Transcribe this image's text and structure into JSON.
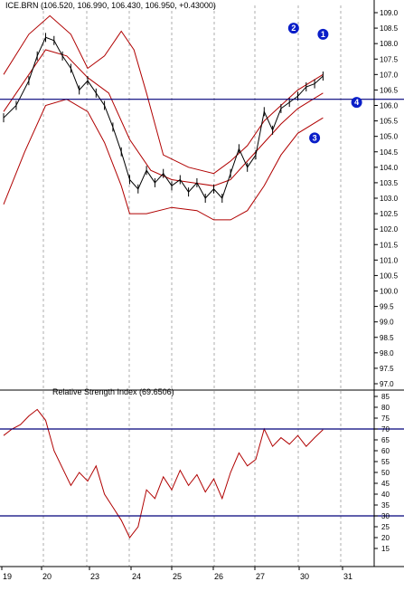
{
  "chart_data": [
    {
      "type": "candlestick",
      "title": "ICE.BRN (106.520, 106.990, 106.430, 106.950, +0.43000)",
      "ylim": [
        97.0,
        109.0
      ],
      "yticks": [
        "109.0",
        "108.5",
        "108.0",
        "107.5",
        "107.0",
        "106.5",
        "106.0",
        "105.5",
        "105.0",
        "104.5",
        "104.0",
        "103.5",
        "103.0",
        "102.5",
        "102.0",
        "101.5",
        "101.0",
        "100.5",
        "100.0",
        "99.5",
        "99.0",
        "98.5",
        "98.0",
        "97.5",
        "97.0"
      ],
      "x_day_ticks": [
        "19",
        "20",
        "23",
        "24",
        "25",
        "26",
        "27",
        "30",
        "31"
      ],
      "grid": "vertical dashed at day boundaries",
      "price_series": [
        {
          "t": 0.0,
          "v": 105.6
        },
        {
          "t": 0.3,
          "v": 106.0
        },
        {
          "t": 0.6,
          "v": 106.8
        },
        {
          "t": 0.8,
          "v": 107.6
        },
        {
          "t": 1.0,
          "v": 108.2
        },
        {
          "t": 1.2,
          "v": 108.1
        },
        {
          "t": 1.4,
          "v": 107.6
        },
        {
          "t": 1.6,
          "v": 107.2
        },
        {
          "t": 1.8,
          "v": 106.5
        },
        {
          "t": 2.0,
          "v": 106.8
        },
        {
          "t": 2.2,
          "v": 106.4
        },
        {
          "t": 2.4,
          "v": 106.0
        },
        {
          "t": 2.6,
          "v": 105.3
        },
        {
          "t": 2.8,
          "v": 104.5
        },
        {
          "t": 3.0,
          "v": 103.6
        },
        {
          "t": 3.2,
          "v": 103.3
        },
        {
          "t": 3.4,
          "v": 103.9
        },
        {
          "t": 3.6,
          "v": 103.5
        },
        {
          "t": 3.8,
          "v": 103.8
        },
        {
          "t": 4.0,
          "v": 103.4
        },
        {
          "t": 4.2,
          "v": 103.6
        },
        {
          "t": 4.4,
          "v": 103.2
        },
        {
          "t": 4.6,
          "v": 103.5
        },
        {
          "t": 4.8,
          "v": 103.0
        },
        {
          "t": 5.0,
          "v": 103.3
        },
        {
          "t": 5.2,
          "v": 103.0
        },
        {
          "t": 5.4,
          "v": 103.8
        },
        {
          "t": 5.6,
          "v": 104.6
        },
        {
          "t": 5.8,
          "v": 104.0
        },
        {
          "t": 6.0,
          "v": 104.4
        },
        {
          "t": 6.2,
          "v": 105.8
        },
        {
          "t": 6.4,
          "v": 105.2
        },
        {
          "t": 6.6,
          "v": 105.9
        },
        {
          "t": 6.8,
          "v": 106.1
        },
        {
          "t": 7.0,
          "v": 106.3
        },
        {
          "t": 7.2,
          "v": 106.6
        },
        {
          "t": 7.4,
          "v": 106.7
        },
        {
          "t": 7.6,
          "v": 106.95
        }
      ],
      "bollinger_upper": [
        {
          "t": 0.0,
          "v": 107.0
        },
        {
          "t": 0.6,
          "v": 108.3
        },
        {
          "t": 1.1,
          "v": 108.9
        },
        {
          "t": 1.6,
          "v": 108.3
        },
        {
          "t": 2.0,
          "v": 107.2
        },
        {
          "t": 2.4,
          "v": 107.6
        },
        {
          "t": 2.8,
          "v": 108.4
        },
        {
          "t": 3.1,
          "v": 107.8
        },
        {
          "t": 3.4,
          "v": 106.4
        },
        {
          "t": 3.8,
          "v": 104.4
        },
        {
          "t": 4.4,
          "v": 104.0
        },
        {
          "t": 5.0,
          "v": 103.8
        },
        {
          "t": 5.4,
          "v": 104.2
        },
        {
          "t": 5.8,
          "v": 104.7
        },
        {
          "t": 6.2,
          "v": 105.5
        },
        {
          "t": 6.6,
          "v": 106.0
        },
        {
          "t": 7.0,
          "v": 106.5
        },
        {
          "t": 7.6,
          "v": 107.0
        }
      ],
      "bollinger_middle": [
        {
          "t": 0.0,
          "v": 105.8
        },
        {
          "t": 0.5,
          "v": 106.8
        },
        {
          "t": 1.0,
          "v": 107.8
        },
        {
          "t": 1.5,
          "v": 107.6
        },
        {
          "t": 2.0,
          "v": 106.9
        },
        {
          "t": 2.5,
          "v": 106.4
        },
        {
          "t": 3.0,
          "v": 104.9
        },
        {
          "t": 3.5,
          "v": 103.9
        },
        {
          "t": 4.0,
          "v": 103.6
        },
        {
          "t": 4.5,
          "v": 103.5
        },
        {
          "t": 5.0,
          "v": 103.4
        },
        {
          "t": 5.4,
          "v": 103.6
        },
        {
          "t": 5.8,
          "v": 104.2
        },
        {
          "t": 6.2,
          "v": 104.8
        },
        {
          "t": 6.6,
          "v": 105.4
        },
        {
          "t": 7.0,
          "v": 105.9
        },
        {
          "t": 7.6,
          "v": 106.4
        }
      ],
      "bollinger_lower": [
        {
          "t": 0.0,
          "v": 102.8
        },
        {
          "t": 0.5,
          "v": 104.5
        },
        {
          "t": 1.0,
          "v": 106.0
        },
        {
          "t": 1.5,
          "v": 106.2
        },
        {
          "t": 2.0,
          "v": 105.8
        },
        {
          "t": 2.4,
          "v": 104.8
        },
        {
          "t": 2.8,
          "v": 103.4
        },
        {
          "t": 3.0,
          "v": 102.5
        },
        {
          "t": 3.4,
          "v": 102.5
        },
        {
          "t": 4.0,
          "v": 102.7
        },
        {
          "t": 4.6,
          "v": 102.6
        },
        {
          "t": 5.0,
          "v": 102.3
        },
        {
          "t": 5.4,
          "v": 102.3
        },
        {
          "t": 5.8,
          "v": 102.6
        },
        {
          "t": 6.2,
          "v": 103.4
        },
        {
          "t": 6.6,
          "v": 104.4
        },
        {
          "t": 7.0,
          "v": 105.1
        },
        {
          "t": 7.6,
          "v": 105.6
        }
      ],
      "hline": {
        "value": 106.2
      },
      "markers": [
        {
          "label": "1",
          "t": 7.6,
          "v": 108.3
        },
        {
          "label": "2",
          "t": 6.9,
          "v": 108.5
        },
        {
          "label": "3",
          "t": 7.4,
          "v": 104.95
        },
        {
          "label": "4",
          "t": 8.4,
          "v": 106.1
        }
      ]
    },
    {
      "type": "line",
      "title": "Relative Strength Index (69.6506)",
      "ylim": [
        10,
        85
      ],
      "yticks": [
        "85",
        "80",
        "75",
        "70",
        "65",
        "60",
        "55",
        "50",
        "45",
        "40",
        "35",
        "30",
        "25",
        "20",
        "15"
      ],
      "hlines": [
        70,
        30
      ],
      "rsi_series": [
        {
          "t": 0.0,
          "v": 67
        },
        {
          "t": 0.2,
          "v": 70
        },
        {
          "t": 0.4,
          "v": 72
        },
        {
          "t": 0.6,
          "v": 76
        },
        {
          "t": 0.8,
          "v": 79
        },
        {
          "t": 1.0,
          "v": 74
        },
        {
          "t": 1.2,
          "v": 60
        },
        {
          "t": 1.4,
          "v": 52
        },
        {
          "t": 1.6,
          "v": 44
        },
        {
          "t": 1.8,
          "v": 50
        },
        {
          "t": 2.0,
          "v": 46
        },
        {
          "t": 2.2,
          "v": 53
        },
        {
          "t": 2.4,
          "v": 40
        },
        {
          "t": 2.6,
          "v": 34
        },
        {
          "t": 2.8,
          "v": 28
        },
        {
          "t": 3.0,
          "v": 20
        },
        {
          "t": 3.2,
          "v": 25
        },
        {
          "t": 3.4,
          "v": 42
        },
        {
          "t": 3.6,
          "v": 38
        },
        {
          "t": 3.8,
          "v": 48
        },
        {
          "t": 4.0,
          "v": 42
        },
        {
          "t": 4.2,
          "v": 51
        },
        {
          "t": 4.4,
          "v": 44
        },
        {
          "t": 4.6,
          "v": 49
        },
        {
          "t": 4.8,
          "v": 41
        },
        {
          "t": 5.0,
          "v": 47
        },
        {
          "t": 5.2,
          "v": 38
        },
        {
          "t": 5.4,
          "v": 50
        },
        {
          "t": 5.6,
          "v": 59
        },
        {
          "t": 5.8,
          "v": 53
        },
        {
          "t": 6.0,
          "v": 56
        },
        {
          "t": 6.2,
          "v": 70
        },
        {
          "t": 6.4,
          "v": 62
        },
        {
          "t": 6.6,
          "v": 66
        },
        {
          "t": 6.8,
          "v": 63
        },
        {
          "t": 7.0,
          "v": 67
        },
        {
          "t": 7.2,
          "v": 62
        },
        {
          "t": 7.4,
          "v": 66
        },
        {
          "t": 7.6,
          "v": 69.65
        }
      ]
    }
  ],
  "colors": {
    "price": "#000000",
    "bands": "#b00000",
    "rsi": "#b00000",
    "hline": "#00007a",
    "marker": "#0a1ec8",
    "grid": "#9a9a9a",
    "frame": "#000000"
  }
}
